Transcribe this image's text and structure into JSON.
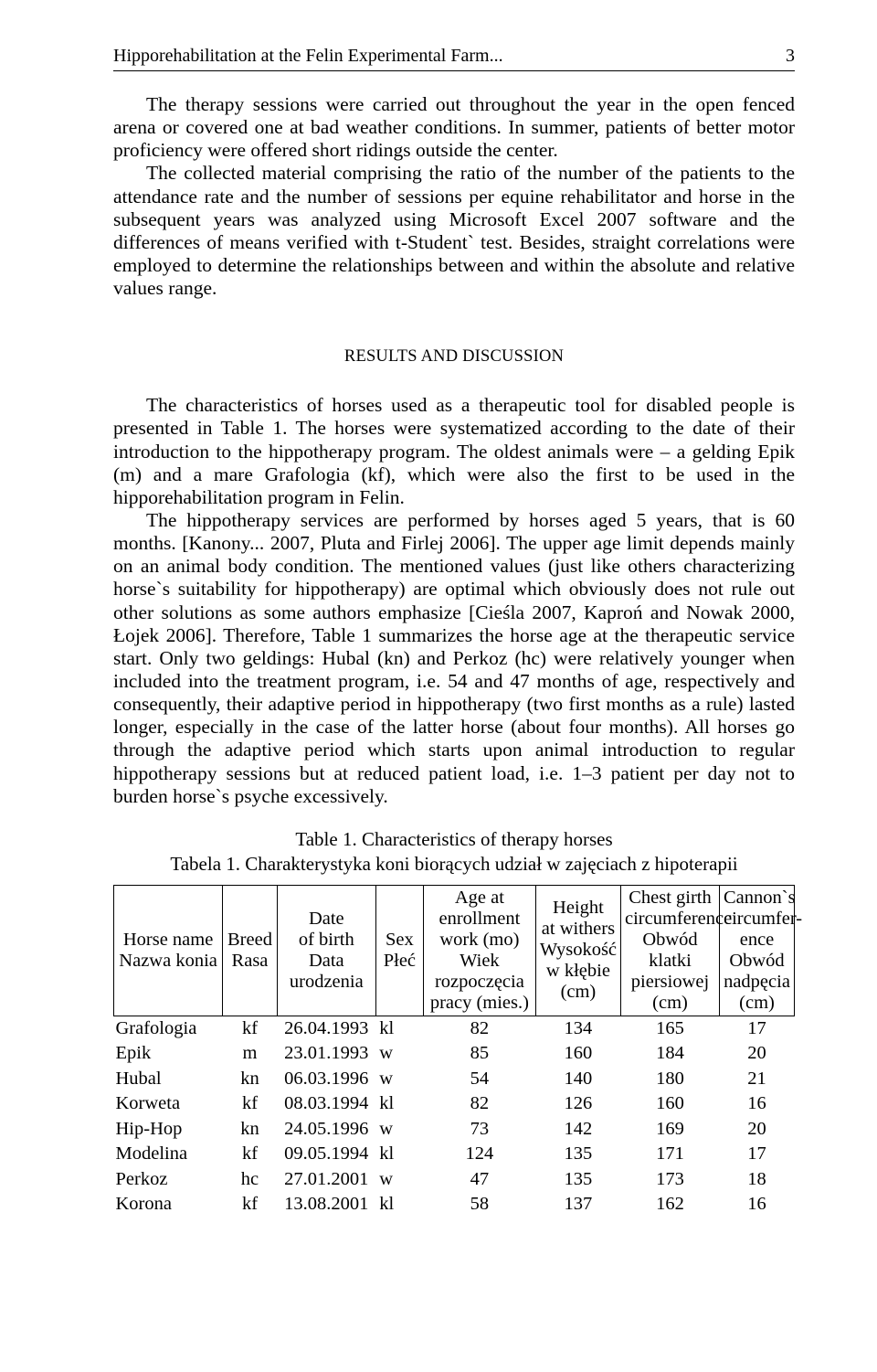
{
  "header": {
    "running_title": "Hipporehabilitation at the Felin Experimental Farm...",
    "page_number": "3"
  },
  "paragraphs": {
    "p1": "The therapy sessions were carried out throughout the year in the open fenced arena or covered one at bad weather conditions. In summer, patients of better motor proficiency were offered short ridings outside the center.",
    "p2": "The collected material comprising the ratio of the number of the patients to the attendance rate and the number of sessions per equine rehabilitator and horse in the subsequent years was analyzed using Microsoft Excel 2007 software and the differences of means verified with t-Student` test. Besides, straight correlations were employed to determine the relationships between and within the absolute and relative values range.",
    "section_head": "RESULTS AND DISCUSSION",
    "p3": "The characteristics of horses used as a therapeutic tool for disabled people is presented in Table 1. The horses were systematized according to the date of their introduction to the hippotherapy program. The oldest animals were – a gelding Epik (m) and a mare Grafologia (kf), which were also the first to be used in the hipporehabilitation program in Felin.",
    "p4": "The hippotherapy services are performed by horses aged 5 years, that is 60 months. [Kanony... 2007, Pluta and Firlej 2006]. The upper age limit depends mainly on an animal body condition. The mentioned values (just like others characterizing horse`s suitability for hippotherapy) are optimal which obviously does not rule out other solutions as some authors emphasize [Cieśla 2007, Kaproń and Nowak 2000, Łojek 2006]. Therefore, Table 1 summarizes the horse age at the therapeutic service start. Only two geldings: Hubal (kn) and Perkoz (hc) were relatively younger when included into the treatment program, i.e. 54 and 47 months of age, respectively and consequently, their adaptive period in hippotherapy (two first months as a rule) lasted longer, especially in the case of the latter horse (about four months). All horses go through the adaptive period which starts upon animal introduction to regular hippotherapy sessions but at reduced patient load, i.e. 1–3 patient per day not to burden horse`s psyche excessively."
  },
  "table": {
    "title": "Table 1. Characteristics of therapy horses",
    "subtitle": "Tabela 1. Charakterystyka koni biorących udział w zajęciach z hipoterapii",
    "columns": {
      "name": "Horse name\nNazwa konia",
      "breed": "Breed\nRasa",
      "date": "Date\nof birth\nData\nurodzenia",
      "sex": "Sex\nPłeć",
      "age": "Age at\nenrollment\nwork (mo)\nWiek\nrozpoczęcia\npracy (mies.)",
      "height": "Height\nat withers\nWysokość\nw kłębie\n(cm)",
      "chest": "Chest girth\ncircumference\nObwód klatki\npiersiowej\n(cm)",
      "cannon": "Cannon`s\ncircumfer-\nence\nObwód\nnadpęcia\n(cm)"
    },
    "rows": [
      {
        "name": "Grafologia",
        "breed": "kf",
        "date": "26.04.1993",
        "sex": "kl",
        "age": "82",
        "height": "134",
        "chest": "165",
        "cannon": "17"
      },
      {
        "name": "Epik",
        "breed": "m",
        "date": "23.01.1993",
        "sex": "w",
        "age": "85",
        "height": "160",
        "chest": "184",
        "cannon": "20"
      },
      {
        "name": "Hubal",
        "breed": "kn",
        "date": "06.03.1996",
        "sex": "w",
        "age": "54",
        "height": "140",
        "chest": "180",
        "cannon": "21"
      },
      {
        "name": "Korweta",
        "breed": "kf",
        "date": "08.03.1994",
        "sex": "kl",
        "age": "82",
        "height": "126",
        "chest": "160",
        "cannon": "16"
      },
      {
        "name": "Hip-Hop",
        "breed": "kn",
        "date": "24.05.1996",
        "sex": "w",
        "age": "73",
        "height": "142",
        "chest": "169",
        "cannon": "20"
      },
      {
        "name": "Modelina",
        "breed": "kf",
        "date": "09.05.1994",
        "sex": "kl",
        "age": "124",
        "height": "135",
        "chest": "171",
        "cannon": "17"
      },
      {
        "name": "Perkoz",
        "breed": "hc",
        "date": "27.01.2001",
        "sex": "w",
        "age": "47",
        "height": "135",
        "chest": "173",
        "cannon": "18"
      },
      {
        "name": "Korona",
        "breed": "kf",
        "date": "13.08.2001",
        "sex": "kl",
        "age": "58",
        "height": "137",
        "chest": "162",
        "cannon": "16"
      }
    ]
  }
}
